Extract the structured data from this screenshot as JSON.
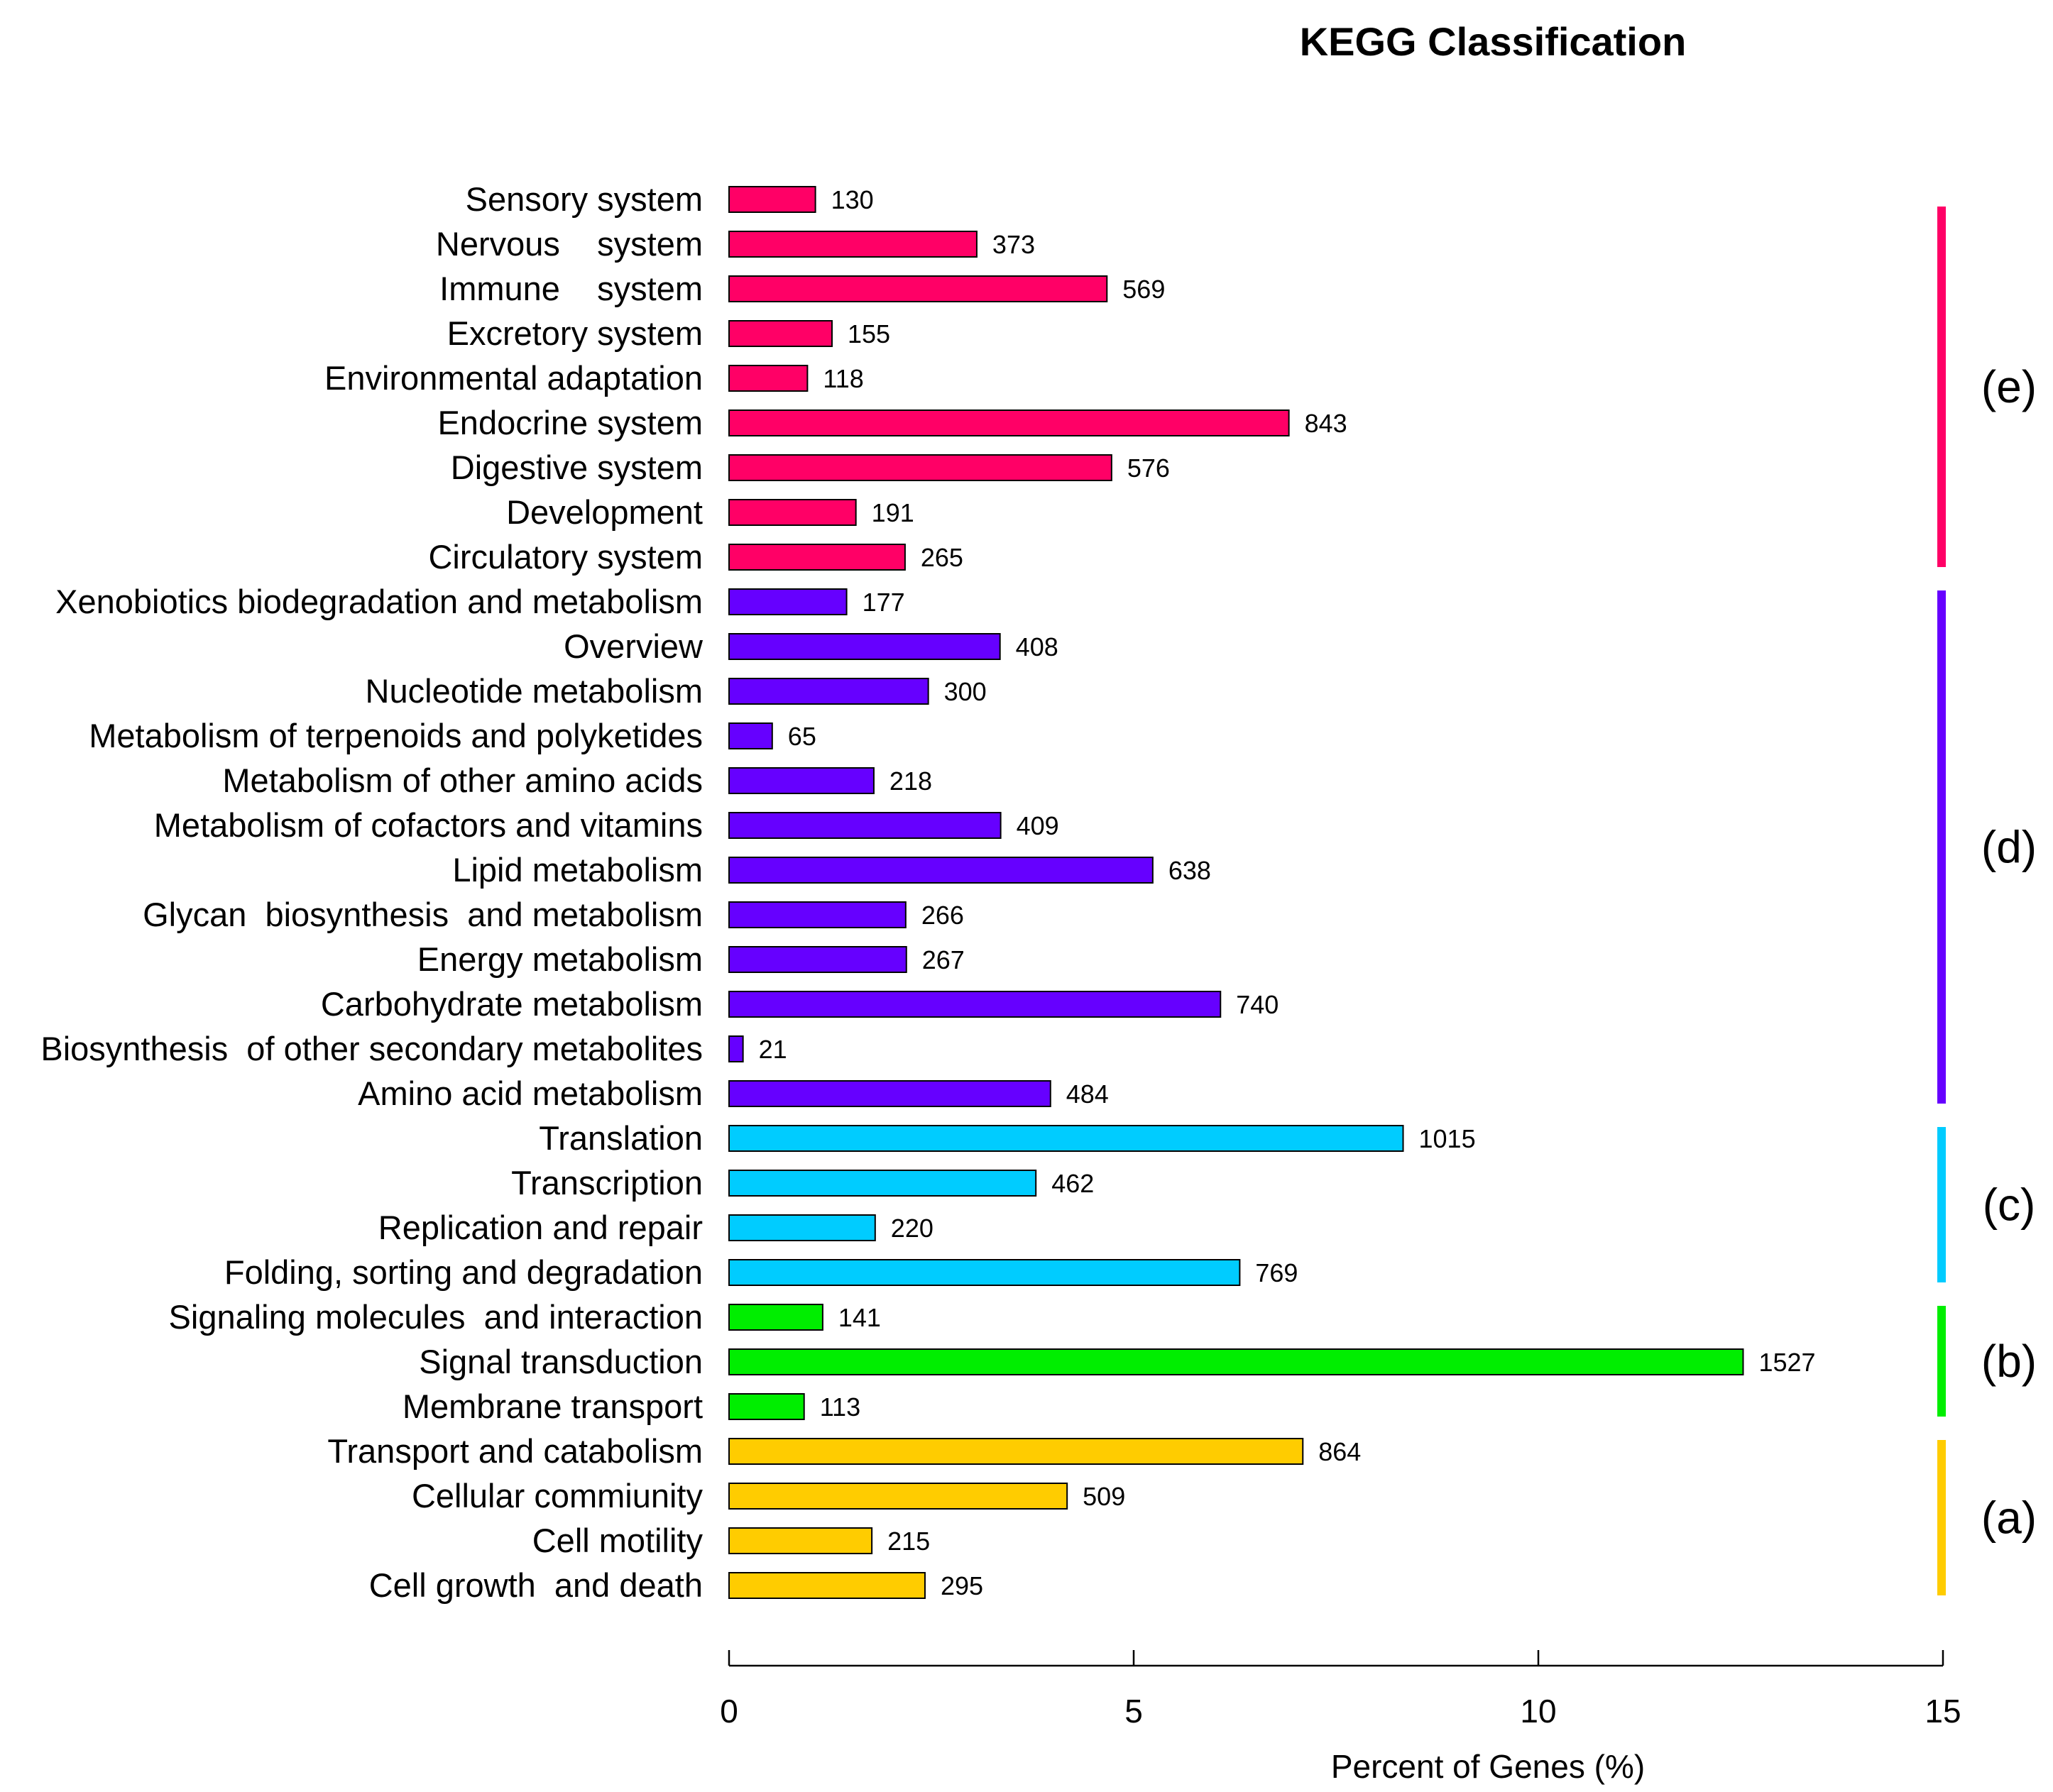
{
  "chart_data": {
    "type": "bar",
    "orientation": "horizontal",
    "title": "KEGG Classification",
    "xlabel": "Percent of Genes (%)",
    "ylabel": "",
    "xlim": [
      0,
      15
    ],
    "xticks": [
      0,
      5,
      10,
      15
    ],
    "grid": false,
    "percent_per_count": 0.008206,
    "categories": [
      {
        "label": "Sensory system",
        "count": 130,
        "group": "e"
      },
      {
        "label": "Nervous    system",
        "count": 373,
        "group": "e"
      },
      {
        "label": "Immune    system",
        "count": 569,
        "group": "e"
      },
      {
        "label": "Excretory system",
        "count": 155,
        "group": "e"
      },
      {
        "label": "Environmental adaptation",
        "count": 118,
        "group": "e"
      },
      {
        "label": "Endocrine system",
        "count": 843,
        "group": "e"
      },
      {
        "label": "Digestive system",
        "count": 576,
        "group": "e"
      },
      {
        "label": "Development",
        "count": 191,
        "group": "e"
      },
      {
        "label": "Circulatory system",
        "count": 265,
        "group": "e"
      },
      {
        "label": "Xenobiotics biodegradation and metabolism",
        "count": 177,
        "group": "d"
      },
      {
        "label": "Overview",
        "count": 408,
        "group": "d"
      },
      {
        "label": "Nucleotide metabolism",
        "count": 300,
        "group": "d"
      },
      {
        "label": "Metabolism of terpenoids and polyketides",
        "count": 65,
        "group": "d"
      },
      {
        "label": "Metabolism of other amino acids",
        "count": 218,
        "group": "d"
      },
      {
        "label": "Metabolism of cofactors and vitamins",
        "count": 409,
        "group": "d"
      },
      {
        "label": "Lipid metabolism",
        "count": 638,
        "group": "d"
      },
      {
        "label": "Glycan  biosynthesis  and metabolism",
        "count": 266,
        "group": "d"
      },
      {
        "label": "Energy metabolism",
        "count": 267,
        "group": "d"
      },
      {
        "label": "Carbohydrate metabolism",
        "count": 740,
        "group": "d"
      },
      {
        "label": "Biosynthesis  of other secondary metabolites",
        "count": 21,
        "group": "d"
      },
      {
        "label": "Amino acid metabolism",
        "count": 484,
        "group": "d"
      },
      {
        "label": "Translation",
        "count": 1015,
        "group": "c"
      },
      {
        "label": "Transcription",
        "count": 462,
        "group": "c"
      },
      {
        "label": "Replication and repair",
        "count": 220,
        "group": "c"
      },
      {
        "label": "Folding, sorting and degradation",
        "count": 769,
        "group": "c"
      },
      {
        "label": "Signaling molecules  and interaction",
        "count": 141,
        "group": "b"
      },
      {
        "label": "Signal transduction",
        "count": 1527,
        "group": "b"
      },
      {
        "label": "Membrane transport",
        "count": 113,
        "group": "b"
      },
      {
        "label": "Transport and catabolism",
        "count": 864,
        "group": "a"
      },
      {
        "label": "Cellular commiunity",
        "count": 509,
        "group": "a"
      },
      {
        "label": "Cell motility",
        "count": 215,
        "group": "a"
      },
      {
        "label": "Cell growth  and death",
        "count": 295,
        "group": "a"
      }
    ],
    "groups": [
      {
        "id": "e",
        "label": "(e)",
        "color": "#ff0066"
      },
      {
        "id": "d",
        "label": "(d)",
        "color": "#6600ff"
      },
      {
        "id": "c",
        "label": "(c)",
        "color": "#00ccff"
      },
      {
        "id": "b",
        "label": "(b)",
        "color": "#00ee00"
      },
      {
        "id": "a",
        "label": "(a)",
        "color": "#ffcc00"
      }
    ]
  }
}
